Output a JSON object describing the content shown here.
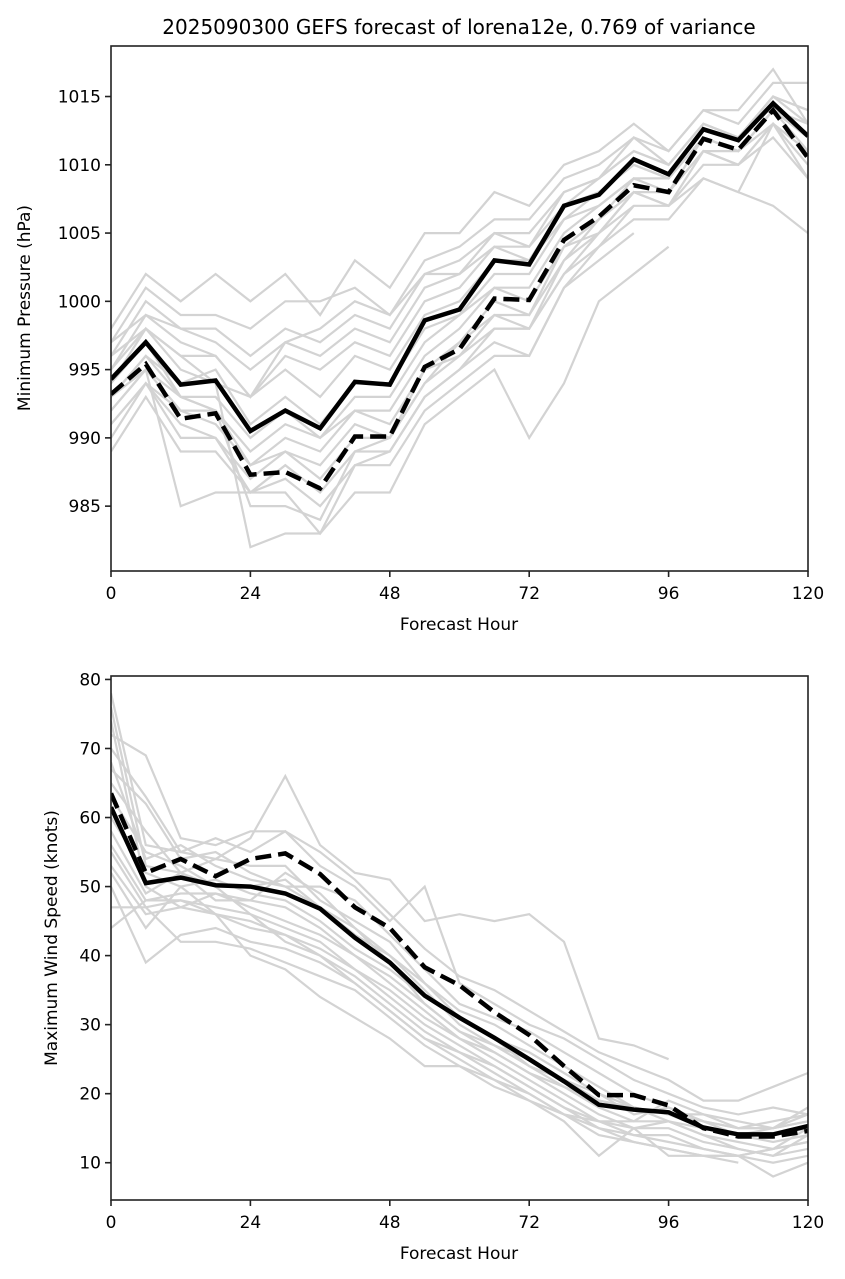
{
  "figure": {
    "title": "2025090300 GEFS forecast of lorena12e, 0.769 of variance"
  },
  "chart_data": [
    {
      "type": "line",
      "title": "2025090300 GEFS forecast of lorena12e, 0.769 of variance",
      "xlabel": "Forecast Hour",
      "ylabel": "Minimum Pressure (hPa)",
      "xlim": [
        0,
        120
      ],
      "ylim": [
        980.25,
        1018.7
      ],
      "xticks": [
        0,
        24,
        48,
        72,
        96,
        120
      ],
      "yticks": [
        985,
        990,
        995,
        1000,
        1005,
        1010,
        1015
      ],
      "grid": false,
      "x": [
        0,
        6,
        12,
        18,
        24,
        30,
        36,
        42,
        48,
        54,
        60,
        66,
        72,
        78,
        84,
        90,
        96,
        102,
        108,
        114,
        120
      ],
      "series": [
        {
          "name": "solid",
          "style": "solid",
          "color": "#000000",
          "values": [
            994.3,
            997.0,
            993.9,
            994.2,
            990.5,
            992.0,
            990.7,
            994.1,
            993.9,
            998.6,
            999.4,
            1003.0,
            1002.7,
            1007.0,
            1007.8,
            1010.4,
            1009.3,
            1012.6,
            1011.8,
            1014.5,
            1012.1
          ]
        },
        {
          "name": "dashed",
          "style": "dashed",
          "color": "#000000",
          "values": [
            993.2,
            995.4,
            991.4,
            991.8,
            987.3,
            987.5,
            986.3,
            990.1,
            990.1,
            995.2,
            996.5,
            1000.2,
            1000.1,
            1004.5,
            1006.2,
            1008.5,
            1008.0,
            1011.9,
            1011.1,
            1014.0,
            1010.5
          ]
        }
      ],
      "members": [
        [
          998,
          1002,
          1000,
          1002,
          1000,
          1002,
          999,
          1003,
          1001,
          1005,
          1005,
          1008,
          1007,
          1010,
          1011,
          1013,
          1011,
          1014,
          1014,
          1017,
          1013
        ],
        [
          997,
          1001,
          999,
          999,
          998,
          1000,
          1000,
          1001,
          999,
          1003,
          1004,
          1006,
          1006,
          1009,
          1010,
          1012,
          1011,
          1014,
          1013,
          1016,
          1016
        ],
        [
          996,
          1000,
          998,
          998,
          996,
          998,
          997,
          999,
          998,
          1002,
          1003,
          1005,
          1005,
          1008,
          1009,
          1011,
          1010,
          1013,
          1012,
          1015,
          1014
        ],
        [
          995,
          999,
          998,
          997,
          995,
          997,
          996,
          998,
          997,
          1001,
          1002,
          1004,
          1004,
          1007,
          1009,
          1011,
          1010,
          1013,
          1012,
          1015,
          1014
        ],
        [
          995,
          998,
          996,
          996,
          993,
          996,
          995,
          997,
          996,
          1000,
          1001,
          1004,
          1003,
          1007,
          1008,
          1010,
          1009,
          1012,
          1011,
          1014,
          1013
        ],
        [
          994,
          998,
          995,
          994,
          993,
          995,
          993,
          996,
          995,
          999,
          1000,
          1003,
          1003,
          1006,
          1008,
          1010,
          1009,
          1012,
          1011,
          1014,
          1012
        ],
        [
          993,
          996,
          994,
          995,
          991,
          993,
          991,
          994,
          994,
          998,
          999,
          1002,
          1002,
          1006,
          1007,
          1009,
          1009,
          1012,
          1011,
          1013,
          1011
        ],
        [
          993,
          996,
          993,
          993,
          990,
          992,
          990,
          993,
          993,
          997,
          999,
          1001,
          1001,
          1005,
          1007,
          1009,
          1008,
          1011,
          1010,
          1013,
          1009
        ],
        [
          992,
          995,
          993,
          992,
          989,
          991,
          990,
          992,
          992,
          996,
          998,
          1001,
          1000,
          1004,
          1006,
          1008,
          1008,
          1011,
          1010,
          1013,
          1010
        ],
        [
          992,
          995,
          992,
          992,
          988,
          990,
          989,
          992,
          991,
          995,
          997,
          1000,
          999,
          1004,
          1005,
          1008,
          1007,
          1010,
          1010,
          1012,
          1009
        ],
        [
          991,
          994,
          992,
          991,
          988,
          989,
          988,
          991,
          990,
          995,
          996,
          999,
          998,
          1003,
          1005,
          1007,
          1007,
          1009,
          1008,
          1007,
          1005
        ],
        [
          991,
          994,
          991,
          990,
          987,
          989,
          987,
          990,
          990,
          994,
          996,
          998,
          998,
          1002,
          1004,
          1006,
          1006,
          1009,
          1008,
          1013,
          1011
        ],
        [
          990,
          994,
          990,
          990,
          986,
          988,
          986,
          989,
          989,
          993,
          995,
          997,
          996,
          1001,
          1003,
          1005,
          null,
          null,
          null,
          null,
          null
        ],
        [
          989,
          993,
          989,
          989,
          986,
          987,
          985,
          988,
          988,
          992,
          994,
          996,
          996,
          1001,
          1004,
          1007,
          null,
          null,
          null,
          null,
          null
        ],
        [
          993,
          995,
          985,
          986,
          986,
          986,
          983,
          986,
          986,
          991,
          993,
          995,
          990,
          994,
          1000,
          1002,
          1004,
          null,
          null,
          null,
          null
        ],
        [
          996,
          998,
          996,
          994,
          982,
          983,
          983,
          988,
          989,
          993,
          995,
          998,
          998,
          1002,
          1005,
          1008,
          1007,
          1011,
          1011,
          1014,
          1012
        ],
        [
          994,
          997,
          993,
          992,
          985,
          985,
          984,
          989,
          990,
          994,
          997,
          999,
          999,
          1003,
          1006,
          1009,
          1008,
          1012,
          1011,
          1014,
          1011
        ],
        [
          997,
          999,
          997,
          996,
          993,
          997,
          998,
          1000,
          999,
          1002,
          1002,
          1005,
          1004,
          1008,
          1009,
          1012,
          1010,
          1013,
          1012,
          1015,
          1013
        ]
      ]
    },
    {
      "type": "line",
      "xlabel": "Forecast Hour",
      "ylabel": "Maximum Wind Speed (knots)",
      "xlim": [
        0,
        120
      ],
      "ylim": [
        4.6,
        80.5
      ],
      "xticks": [
        0,
        24,
        48,
        72,
        96,
        120
      ],
      "yticks": [
        10,
        20,
        30,
        40,
        50,
        60,
        70,
        80
      ],
      "grid": false,
      "x": [
        0,
        6,
        12,
        18,
        24,
        30,
        36,
        42,
        48,
        54,
        60,
        66,
        72,
        78,
        84,
        90,
        96,
        102,
        108,
        114,
        120
      ],
      "series": [
        {
          "name": "solid",
          "style": "solid",
          "color": "#000000",
          "values": [
            61.5,
            50.5,
            51.3,
            50.2,
            50.0,
            49.0,
            46.8,
            42.6,
            39.0,
            34.2,
            31.0,
            28.1,
            25.0,
            21.8,
            18.4,
            17.7,
            17.3,
            15.1,
            14.1,
            14.1,
            15.3
          ]
        },
        {
          "name": "dashed",
          "style": "dashed",
          "color": "#000000",
          "values": [
            63.5,
            52.0,
            54.0,
            51.5,
            54.0,
            54.8,
            51.8,
            47.0,
            44.0,
            38.3,
            35.7,
            31.8,
            28.5,
            24.0,
            19.8,
            19.8,
            18.3,
            15.0,
            13.8,
            13.8,
            14.6
          ]
        }
      ],
      "members": [
        [
          78,
          56,
          55,
          54,
          57,
          66,
          56,
          52,
          51,
          45,
          46,
          45,
          46,
          42,
          28,
          27,
          25,
          null,
          null,
          null,
          null
        ],
        [
          72,
          69,
          57,
          56,
          58,
          58,
          55,
          51,
          46,
          41,
          37,
          35,
          32,
          29,
          26,
          24,
          22,
          19,
          19,
          21,
          23
        ],
        [
          70,
          63,
          55,
          57,
          55,
          58,
          53,
          50,
          45,
          50,
          36,
          33,
          30,
          28,
          25,
          22,
          20,
          18,
          17,
          18,
          17
        ],
        [
          67,
          62,
          54,
          55,
          52,
          50,
          50,
          48,
          43,
          38,
          33,
          31,
          29,
          26,
          23,
          20,
          18,
          16,
          15,
          15,
          18
        ],
        [
          65,
          58,
          52,
          54,
          53,
          53,
          48,
          45,
          42,
          36,
          32,
          30,
          27,
          24,
          21,
          18,
          17,
          15,
          14,
          15,
          16
        ],
        [
          63,
          55,
          53,
          50,
          50,
          51,
          47,
          44,
          40,
          36,
          31,
          28,
          26,
          23,
          20,
          18,
          17,
          16,
          14,
          14,
          15
        ],
        [
          60,
          52,
          50,
          51,
          49,
          48,
          45,
          41,
          38,
          34,
          31,
          28,
          24,
          22,
          19,
          18,
          16,
          15,
          14,
          13,
          14
        ],
        [
          58,
          49,
          52,
          48,
          48,
          47,
          44,
          40,
          37,
          33,
          29,
          27,
          24,
          21,
          18,
          16,
          16,
          14,
          13,
          12,
          13
        ],
        [
          56,
          48,
          49,
          49,
          47,
          45,
          43,
          40,
          36,
          32,
          28,
          26,
          23,
          20,
          17,
          15,
          15,
          13,
          12,
          11,
          12
        ],
        [
          55,
          47,
          48,
          47,
          46,
          44,
          42,
          38,
          35,
          31,
          28,
          25,
          22,
          19,
          16,
          14,
          14,
          12,
          11,
          10,
          11
        ],
        [
          53,
          46,
          47,
          46,
          45,
          43,
          41,
          38,
          34,
          30,
          27,
          24,
          21,
          18,
          15,
          14,
          13,
          12,
          11,
          8,
          10
        ],
        [
          52,
          44,
          50,
          46,
          44,
          43,
          40,
          37,
          33,
          29,
          26,
          23,
          20,
          17,
          15,
          13,
          12,
          11,
          11,
          12,
          13
        ],
        [
          50,
          39,
          43,
          44,
          42,
          41,
          39,
          36,
          32,
          28,
          25,
          22,
          20,
          17,
          14,
          13,
          12,
          11,
          10,
          null,
          null
        ],
        [
          47,
          47,
          42,
          42,
          41,
          39,
          37,
          35,
          31,
          27,
          24,
          21,
          19,
          16,
          11,
          15,
          16,
          14,
          12,
          11,
          14
        ],
        [
          44,
          48,
          48,
          46,
          40,
          38,
          34,
          31,
          28,
          24,
          24,
          22,
          19,
          17,
          16,
          15,
          11,
          11,
          11,
          12,
          15
        ],
        [
          76,
          53,
          52,
          50,
          46,
          42,
          40,
          36,
          32,
          28,
          26,
          24,
          21,
          18,
          16,
          16,
          19,
          17,
          15,
          15,
          17
        ],
        [
          74,
          50,
          47,
          49,
          48,
          52,
          49,
          44,
          39,
          33,
          29,
          26,
          23,
          21,
          19,
          18,
          17,
          17,
          16,
          15,
          16
        ],
        [
          68,
          54,
          56,
          53,
          51,
          50,
          47,
          43,
          40,
          35,
          30,
          27,
          25,
          22,
          20,
          17,
          18,
          16,
          15,
          16,
          17
        ]
      ]
    }
  ]
}
